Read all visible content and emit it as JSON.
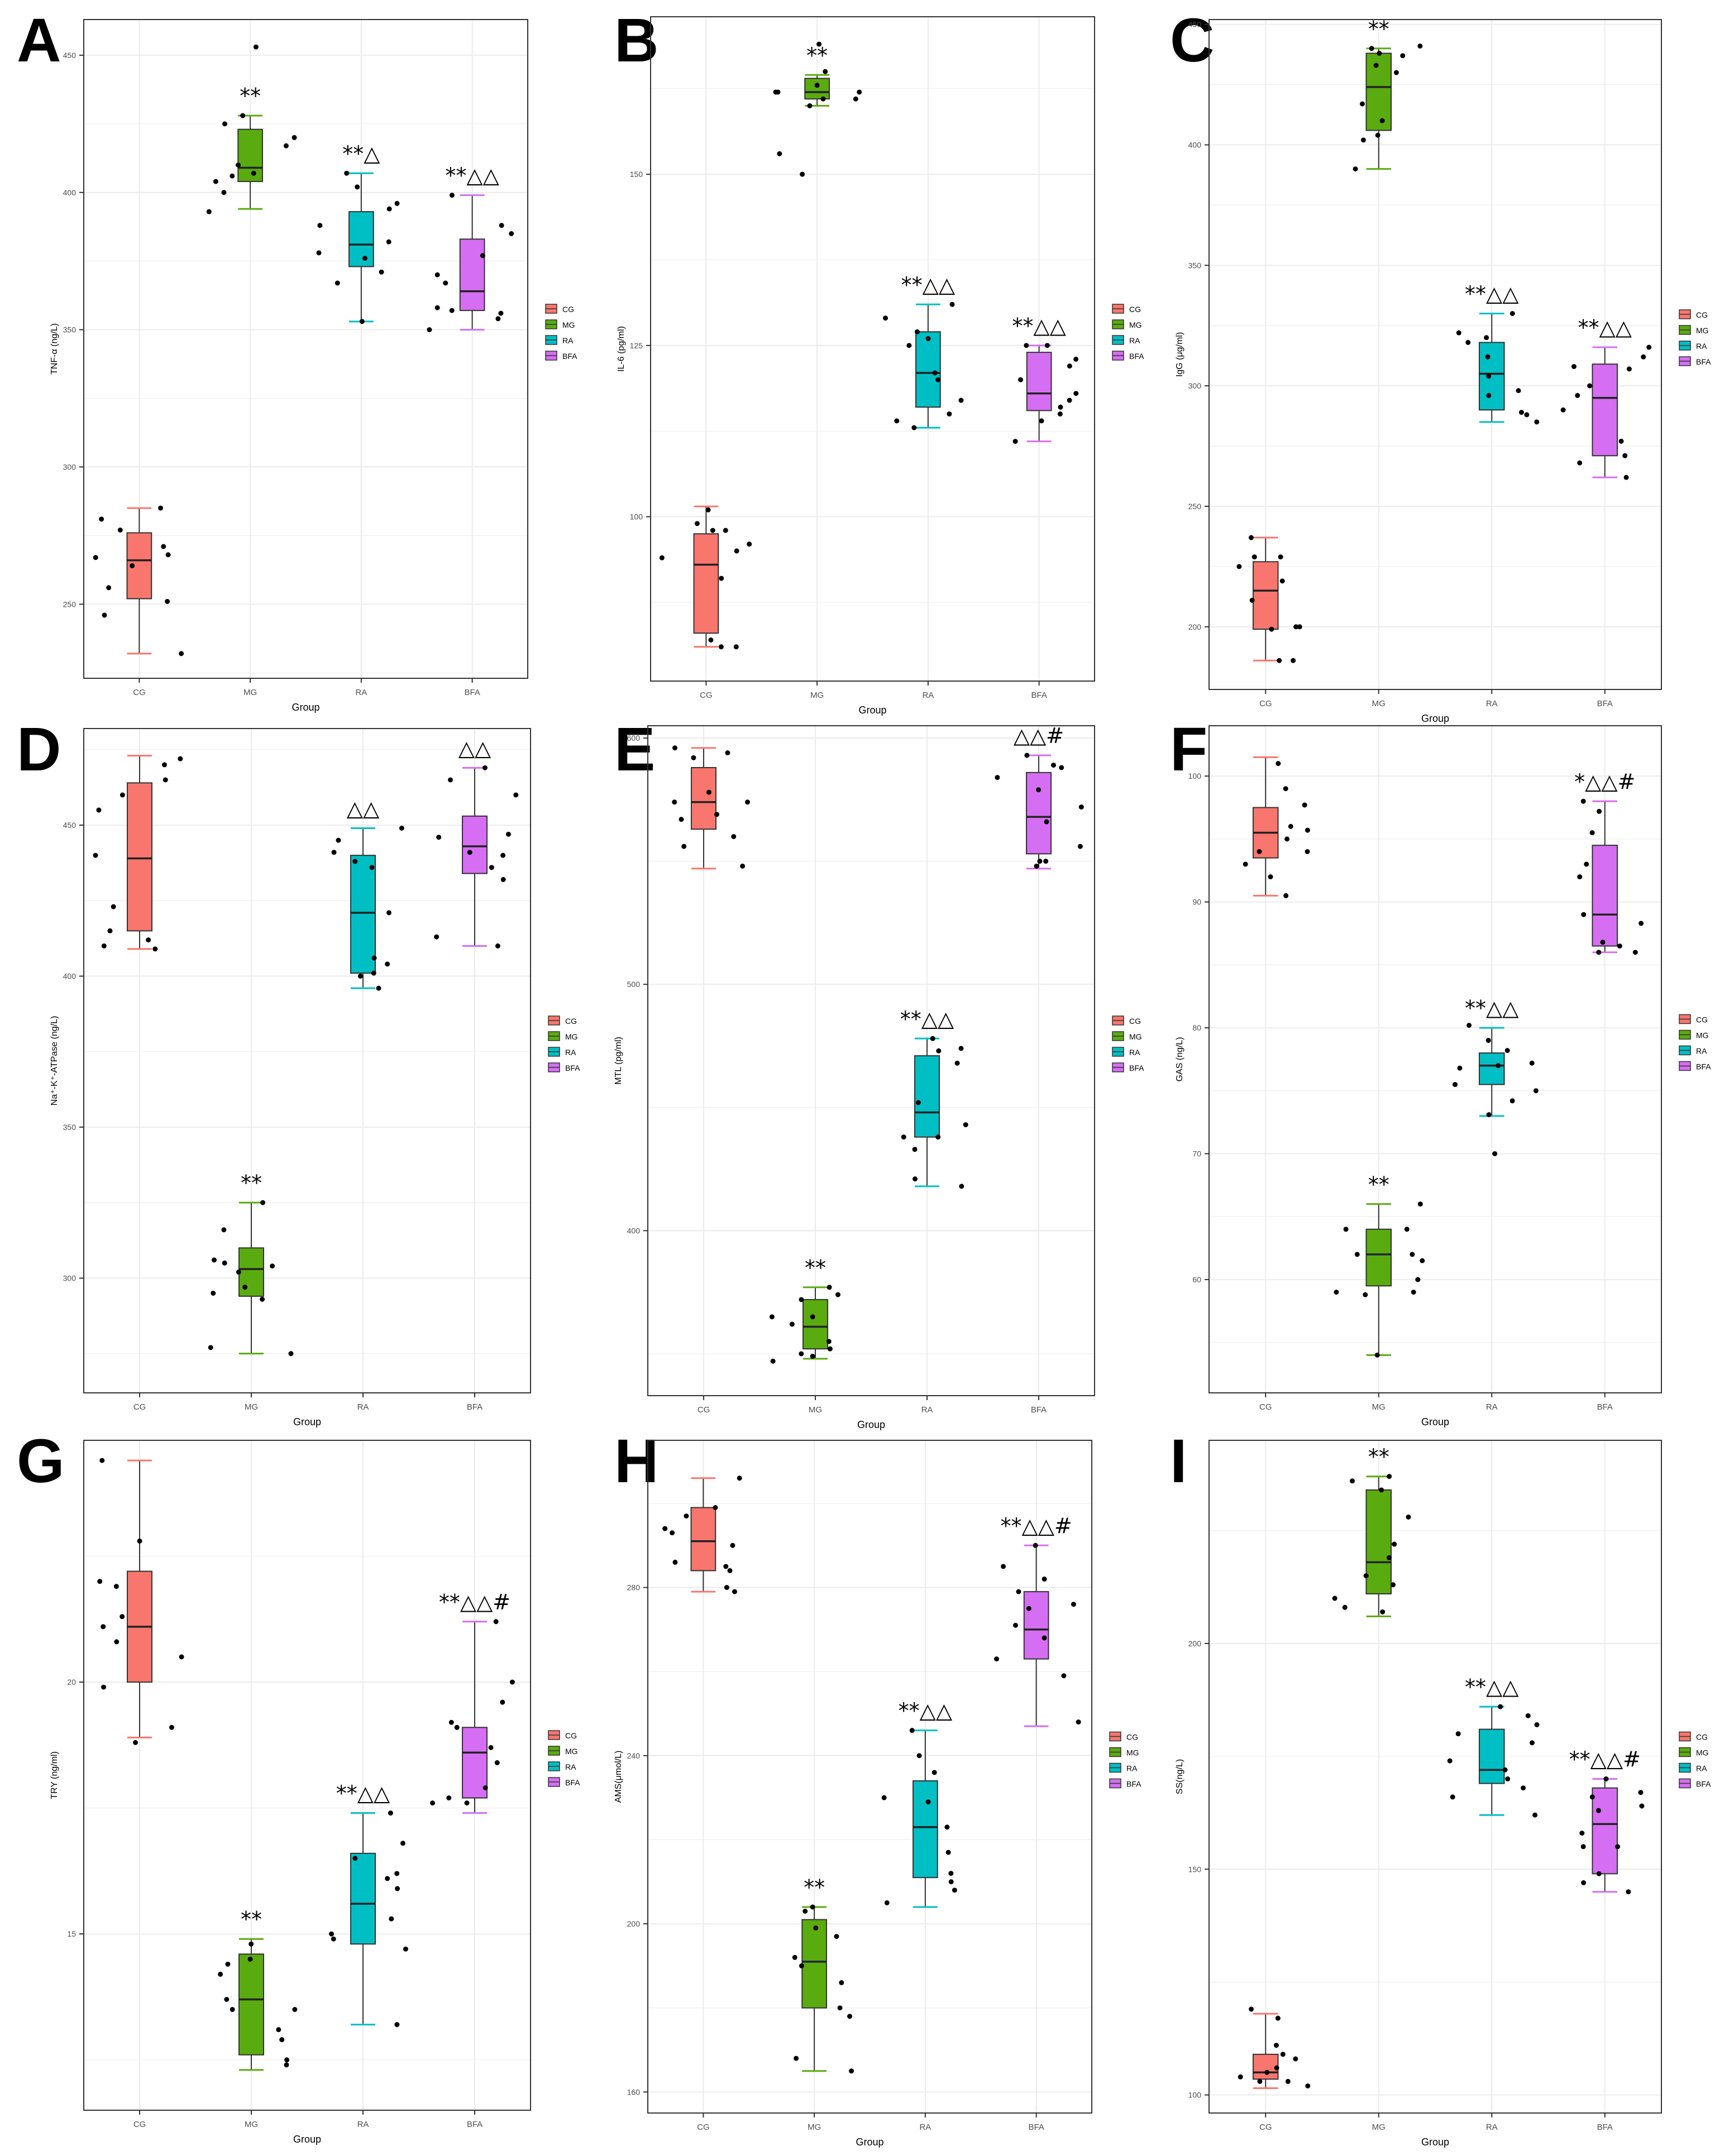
{
  "colors": {
    "CG": "#F8766D",
    "MG": "#5AAB0F",
    "RA": "#00BFC4",
    "BFA": "#D56EF2",
    "grid": "#ebebeb",
    "frame": "#333333",
    "point": "#000000"
  },
  "legend": [
    "CG",
    "MG",
    "RA",
    "BFA"
  ],
  "chart_data": [
    {
      "panel": "A",
      "type": "box",
      "xlabel": "Group",
      "ylabel": "TNF-α (ng/L)",
      "categories": [
        "CG",
        "MG",
        "RA",
        "BFA"
      ],
      "ylim": [
        223,
        463
      ],
      "yticks": [
        250,
        300,
        350,
        400,
        450
      ],
      "boxes": [
        {
          "group": "CG",
          "min": 232,
          "q1": 252,
          "median": 266,
          "q3": 276,
          "max": 285
        },
        {
          "group": "MG",
          "min": 394,
          "q1": 404,
          "median": 409,
          "q3": 423,
          "max": 428
        },
        {
          "group": "RA",
          "min": 353,
          "q1": 373,
          "median": 381,
          "q3": 393,
          "max": 407
        },
        {
          "group": "BFA",
          "min": 350,
          "q1": 357,
          "median": 364,
          "q3": 383,
          "max": 399
        }
      ],
      "points": [
        {
          "group": "CG",
          "values": [
            285,
            281,
            264,
            268,
            256,
            251,
            246,
            232,
            277,
            271,
            267
          ]
        },
        {
          "group": "MG",
          "values": [
            453,
            410,
            406,
            407,
            404,
            393,
            417,
            400,
            428,
            420,
            425
          ]
        },
        {
          "group": "RA",
          "values": [
            402,
            407,
            396,
            388,
            382,
            378,
            376,
            367,
            353,
            394,
            371
          ]
        },
        {
          "group": "BFA",
          "values": [
            399,
            385,
            377,
            370,
            367,
            356,
            354,
            350,
            358,
            357,
            388
          ]
        }
      ],
      "annotations": [
        "",
        "**",
        "**△",
        "**△△"
      ]
    },
    {
      "panel": "B",
      "type": "box",
      "xlabel": "Group",
      "ylabel": "IL-6 (pg/ml)",
      "categories": [
        "CG",
        "MG",
        "RA",
        "BFA"
      ],
      "ylim": [
        76,
        173
      ],
      "yticks": [
        100,
        125,
        150
      ],
      "boxes": [
        {
          "group": "CG",
          "min": 81,
          "q1": 83,
          "median": 93,
          "q3": 97.5,
          "max": 101.5
        },
        {
          "group": "MG",
          "min": 160,
          "q1": 161,
          "median": 162,
          "q3": 164,
          "max": 164.5
        },
        {
          "group": "RA",
          "min": 113,
          "q1": 116,
          "median": 121,
          "q3": 127,
          "max": 131
        },
        {
          "group": "BFA",
          "min": 111,
          "q1": 115.5,
          "median": 118,
          "q3": 124,
          "max": 125
        }
      ],
      "points": [
        {
          "group": "CG",
          "values": [
            101,
            98,
            95,
            94,
            91,
            81,
            81,
            82,
            99,
            98,
            96
          ]
        },
        {
          "group": "MG",
          "values": [
            169,
            161,
            162,
            163,
            162,
            160,
            161,
            153,
            150,
            162,
            165
          ]
        },
        {
          "group": "RA",
          "values": [
            129,
            127,
            125,
            121,
            117,
            115,
            114,
            120,
            131,
            113,
            126
          ]
        },
        {
          "group": "BFA",
          "values": [
            125,
            118,
            116,
            115,
            114,
            122,
            123,
            111,
            120,
            117,
            125
          ]
        }
      ],
      "annotations": [
        "",
        "**",
        "**△△",
        "**△△"
      ]
    },
    {
      "panel": "C",
      "type": "box",
      "xlabel": "Group",
      "ylabel": "IgG (μg/ml)",
      "categories": [
        "CG",
        "MG",
        "RA",
        "BFA"
      ],
      "ylim": [
        174,
        452
      ],
      "yticks": [
        200,
        250,
        300,
        350,
        400,
        450
      ],
      "boxes": [
        {
          "group": "CG",
          "min": 186,
          "q1": 199,
          "median": 215,
          "q3": 227,
          "max": 237
        },
        {
          "group": "MG",
          "min": 390,
          "q1": 406,
          "median": 424,
          "q3": 438,
          "max": 440
        },
        {
          "group": "RA",
          "min": 285,
          "q1": 290,
          "median": 305,
          "q3": 318,
          "max": 330
        },
        {
          "group": "BFA",
          "min": 262,
          "q1": 271,
          "median": 295,
          "q3": 309,
          "max": 316
        }
      ],
      "points": [
        {
          "group": "CG",
          "values": [
            237,
            229,
            225,
            211,
            219,
            200,
            199,
            186,
            229,
            186,
            200
          ]
        },
        {
          "group": "MG",
          "values": [
            440,
            441,
            404,
            390,
            410,
            417,
            430,
            438,
            402,
            437,
            433
          ]
        },
        {
          "group": "RA",
          "values": [
            318,
            312,
            320,
            304,
            296,
            288,
            289,
            285,
            322,
            330,
            298
          ]
        },
        {
          "group": "BFA",
          "values": [
            316,
            312,
            308,
            300,
            290,
            277,
            271,
            262,
            268,
            296,
            307
          ]
        }
      ],
      "annotations": [
        "",
        "**",
        "**△△",
        "**△△"
      ]
    },
    {
      "panel": "D",
      "type": "box",
      "xlabel": "Group",
      "ylabel": "Na⁺-K⁺-ATPase (ng/L)",
      "categories": [
        "CG",
        "MG",
        "RA",
        "BFA"
      ],
      "ylim": [
        262,
        482
      ],
      "yticks": [
        300,
        350,
        400,
        450
      ],
      "boxes": [
        {
          "group": "CG",
          "min": 409,
          "q1": 415,
          "median": 439,
          "q3": 464,
          "max": 473
        },
        {
          "group": "MG",
          "min": 275,
          "q1": 294,
          "median": 303,
          "q3": 310,
          "max": 325
        },
        {
          "group": "RA",
          "min": 396,
          "q1": 401,
          "median": 421,
          "q3": 440,
          "max": 449
        },
        {
          "group": "BFA",
          "min": 410,
          "q1": 434,
          "median": 443,
          "q3": 453,
          "max": 469
        }
      ],
      "points": [
        {
          "group": "CG",
          "values": [
            455,
            410,
            465,
            472,
            470,
            423,
            415,
            412,
            409,
            460,
            440
          ]
        },
        {
          "group": "MG",
          "values": [
            325,
            306,
            316,
            297,
            293,
            305,
            295,
            275,
            304,
            302,
            277
          ]
        },
        {
          "group": "RA",
          "values": [
            449,
            438,
            441,
            421,
            404,
            401,
            406,
            396,
            400,
            436,
            445
          ]
        },
        {
          "group": "BFA",
          "values": [
            465,
            447,
            446,
            441,
            432,
            413,
            410,
            440,
            469,
            436,
            460
          ]
        }
      ],
      "annotations": [
        "",
        "**",
        "△△",
        "△△"
      ]
    },
    {
      "panel": "E",
      "type": "box",
      "xlabel": "Group",
      "ylabel": "MTL (pg/ml)",
      "categories": [
        "CG",
        "MG",
        "RA",
        "BFA"
      ],
      "ylim": [
        333,
        605
      ],
      "yticks": [
        400,
        500,
        600
      ],
      "boxes": [
        {
          "group": "CG",
          "min": 547,
          "q1": 563,
          "median": 574,
          "q3": 588,
          "max": 596
        },
        {
          "group": "MG",
          "min": 348,
          "q1": 352,
          "median": 361,
          "q3": 372,
          "max": 377
        },
        {
          "group": "RA",
          "min": 418,
          "q1": 438,
          "median": 448,
          "q3": 471,
          "max": 478
        },
        {
          "group": "BFA",
          "min": 547,
          "q1": 553,
          "median": 568,
          "q3": 586,
          "max": 593
        }
      ],
      "points": [
        {
          "group": "CG",
          "values": [
            596,
            594,
            592,
            578,
            574,
            567,
            556,
            560,
            548,
            574,
            569
          ]
        },
        {
          "group": "MG",
          "values": [
            372,
            365,
            374,
            362,
            355,
            350,
            347,
            352,
            349,
            377,
            365
          ]
        },
        {
          "group": "RA",
          "values": [
            478,
            473,
            468,
            452,
            443,
            438,
            438,
            433,
            421,
            418,
            474
          ]
        },
        {
          "group": "BFA",
          "values": [
            593,
            584,
            579,
            572,
            566,
            550,
            550,
            548,
            588,
            589,
            556
          ]
        }
      ],
      "annotations": [
        "",
        "**",
        "**△△",
        "△△#"
      ]
    },
    {
      "panel": "F",
      "type": "box",
      "xlabel": "Group",
      "ylabel": "GAS (ng/L)",
      "categories": [
        "CG",
        "MG",
        "RA",
        "BFA"
      ],
      "ylim": [
        51,
        104
      ],
      "yticks": [
        60,
        70,
        80,
        90,
        100
      ],
      "boxes": [
        {
          "group": "CG",
          "min": 90.5,
          "q1": 93.5,
          "median": 95.5,
          "q3": 97.5,
          "max": 101.5
        },
        {
          "group": "MG",
          "min": 54,
          "q1": 59.5,
          "median": 62,
          "q3": 64,
          "max": 66
        },
        {
          "group": "RA",
          "min": 73,
          "q1": 75.5,
          "median": 77,
          "q3": 78,
          "max": 80
        },
        {
          "group": "BFA",
          "min": 86,
          "q1": 86.5,
          "median": 89,
          "q3": 94.5,
          "max": 98
        }
      ],
      "points": [
        {
          "group": "CG",
          "values": [
            101,
            99,
            97.7,
            95,
            96,
            94,
            93,
            92,
            90.5,
            95.7,
            94
          ]
        },
        {
          "group": "MG",
          "values": [
            66,
            64,
            64,
            62,
            62,
            61.5,
            60,
            59,
            58.8,
            54,
            59
          ]
        },
        {
          "group": "RA",
          "values": [
            80.2,
            79,
            78.2,
            77,
            77.2,
            76.8,
            75.5,
            74.2,
            73.1,
            75,
            70
          ]
        },
        {
          "group": "BFA",
          "values": [
            98,
            97.2,
            95.5,
            92,
            89,
            88.3,
            86.8,
            86.5,
            86,
            86,
            93
          ]
        }
      ],
      "annotations": [
        "",
        "**",
        "**△△",
        "*△△#"
      ]
    },
    {
      "panel": "G",
      "type": "box",
      "xlabel": "Group",
      "ylabel": "TRY (ng/ml)",
      "categories": [
        "CG",
        "MG",
        "RA",
        "BFA"
      ],
      "ylim": [
        11.5,
        24.8
      ],
      "yticks": [
        15,
        20
      ],
      "boxes": [
        {
          "group": "CG",
          "min": 18.9,
          "q1": 20,
          "median": 21.1,
          "q3": 22.2,
          "max": 24.4
        },
        {
          "group": "MG",
          "min": 12.3,
          "q1": 12.6,
          "median": 13.7,
          "q3": 14.6,
          "max": 14.9
        },
        {
          "group": "RA",
          "min": 13.2,
          "q1": 14.8,
          "median": 15.6,
          "q3": 16.6,
          "max": 17.4
        },
        {
          "group": "BFA",
          "min": 17.4,
          "q1": 17.7,
          "median": 18.6,
          "q3": 19.1,
          "max": 21.2
        }
      ],
      "points": [
        {
          "group": "CG",
          "values": [
            24.4,
            22.8,
            22,
            21.3,
            21.1,
            20.8,
            19.9,
            19.1,
            18.8,
            21.9,
            20.5
          ]
        },
        {
          "group": "MG",
          "values": [
            14.8,
            14.5,
            14.4,
            14.2,
            13.7,
            13.5,
            13.5,
            12.9,
            12.4,
            12.5,
            13.1
          ]
        },
        {
          "group": "RA",
          "values": [
            17.4,
            16.8,
            16.5,
            16.2,
            15.9,
            15.3,
            15.0,
            14.9,
            13.2,
            14.7,
            16.1
          ]
        },
        {
          "group": "BFA",
          "values": [
            21.2,
            19.2,
            19.1,
            18.7,
            18.4,
            17.7,
            17.6,
            17.6,
            19.6,
            17.9,
            20
          ]
        }
      ],
      "annotations": [
        "",
        "**",
        "**△△",
        "**△△#"
      ]
    },
    {
      "panel": "H",
      "type": "box",
      "xlabel": "Group",
      "ylabel": "AMS(μmol/L)",
      "categories": [
        "CG",
        "MG",
        "RA",
        "BFA"
      ],
      "ylim": [
        155,
        315
      ],
      "yticks": [
        160,
        200,
        240,
        280
      ],
      "boxes": [
        {
          "group": "CG",
          "min": 279,
          "q1": 284,
          "median": 291,
          "q3": 299,
          "max": 306
        },
        {
          "group": "MG",
          "min": 165,
          "q1": 180,
          "median": 191,
          "q3": 201,
          "max": 204
        },
        {
          "group": "RA",
          "min": 204,
          "q1": 211,
          "median": 223,
          "q3": 234,
          "max": 246
        },
        {
          "group": "BFA",
          "min": 247,
          "q1": 263,
          "median": 270,
          "q3": 279,
          "max": 290
        }
      ],
      "points": [
        {
          "group": "CG",
          "values": [
            306,
            299,
            297,
            293,
            290,
            286,
            284,
            279,
            294,
            285,
            280
          ]
        },
        {
          "group": "MG",
          "values": [
            204,
            203,
            199,
            197,
            190,
            186,
            180,
            178,
            168,
            165,
            192
          ]
        },
        {
          "group": "RA",
          "values": [
            246,
            240,
            236,
            230,
            223,
            217,
            212,
            210,
            208,
            205,
            229
          ]
        },
        {
          "group": "BFA",
          "values": [
            290,
            285,
            282,
            279,
            275,
            268,
            263,
            259,
            248,
            276,
            271
          ]
        }
      ],
      "annotations": [
        "",
        "**",
        "**△△",
        "**△△#"
      ]
    },
    {
      "panel": "I",
      "type": "box",
      "xlabel": "Group",
      "ylabel": "SS(ng/L)",
      "categories": [
        "CG",
        "MG",
        "RA",
        "BFA"
      ],
      "ylim": [
        96,
        245
      ],
      "yticks": [
        100,
        150,
        200
      ],
      "boxes": [
        {
          "group": "CG",
          "min": 101.5,
          "q1": 103.5,
          "median": 105,
          "q3": 109,
          "max": 118
        },
        {
          "group": "MG",
          "min": 206,
          "q1": 211,
          "median": 218,
          "q3": 234,
          "max": 237
        },
        {
          "group": "RA",
          "min": 162,
          "q1": 169,
          "median": 172,
          "q3": 181,
          "max": 186
        },
        {
          "group": "BFA",
          "min": 145,
          "q1": 149,
          "median": 160,
          "q3": 168,
          "max": 170
        }
      ],
      "points": [
        {
          "group": "CG",
          "values": [
            119,
            117,
            111,
            109,
            106,
            104,
            103,
            103,
            102,
            108,
            105
          ]
        },
        {
          "group": "MG",
          "values": [
            237,
            236,
            234,
            228,
            222,
            215,
            213,
            210,
            207,
            219,
            208
          ]
        },
        {
          "group": "RA",
          "values": [
            186,
            184,
            182,
            178,
            174,
            172,
            170,
            168,
            166,
            180,
            162
          ]
        },
        {
          "group": "BFA",
          "values": [
            170,
            167,
            166,
            163,
            158,
            155,
            149,
            147,
            145,
            155,
            164
          ]
        }
      ],
      "annotations": [
        "",
        "**",
        "**△△",
        "**△△#"
      ]
    }
  ]
}
